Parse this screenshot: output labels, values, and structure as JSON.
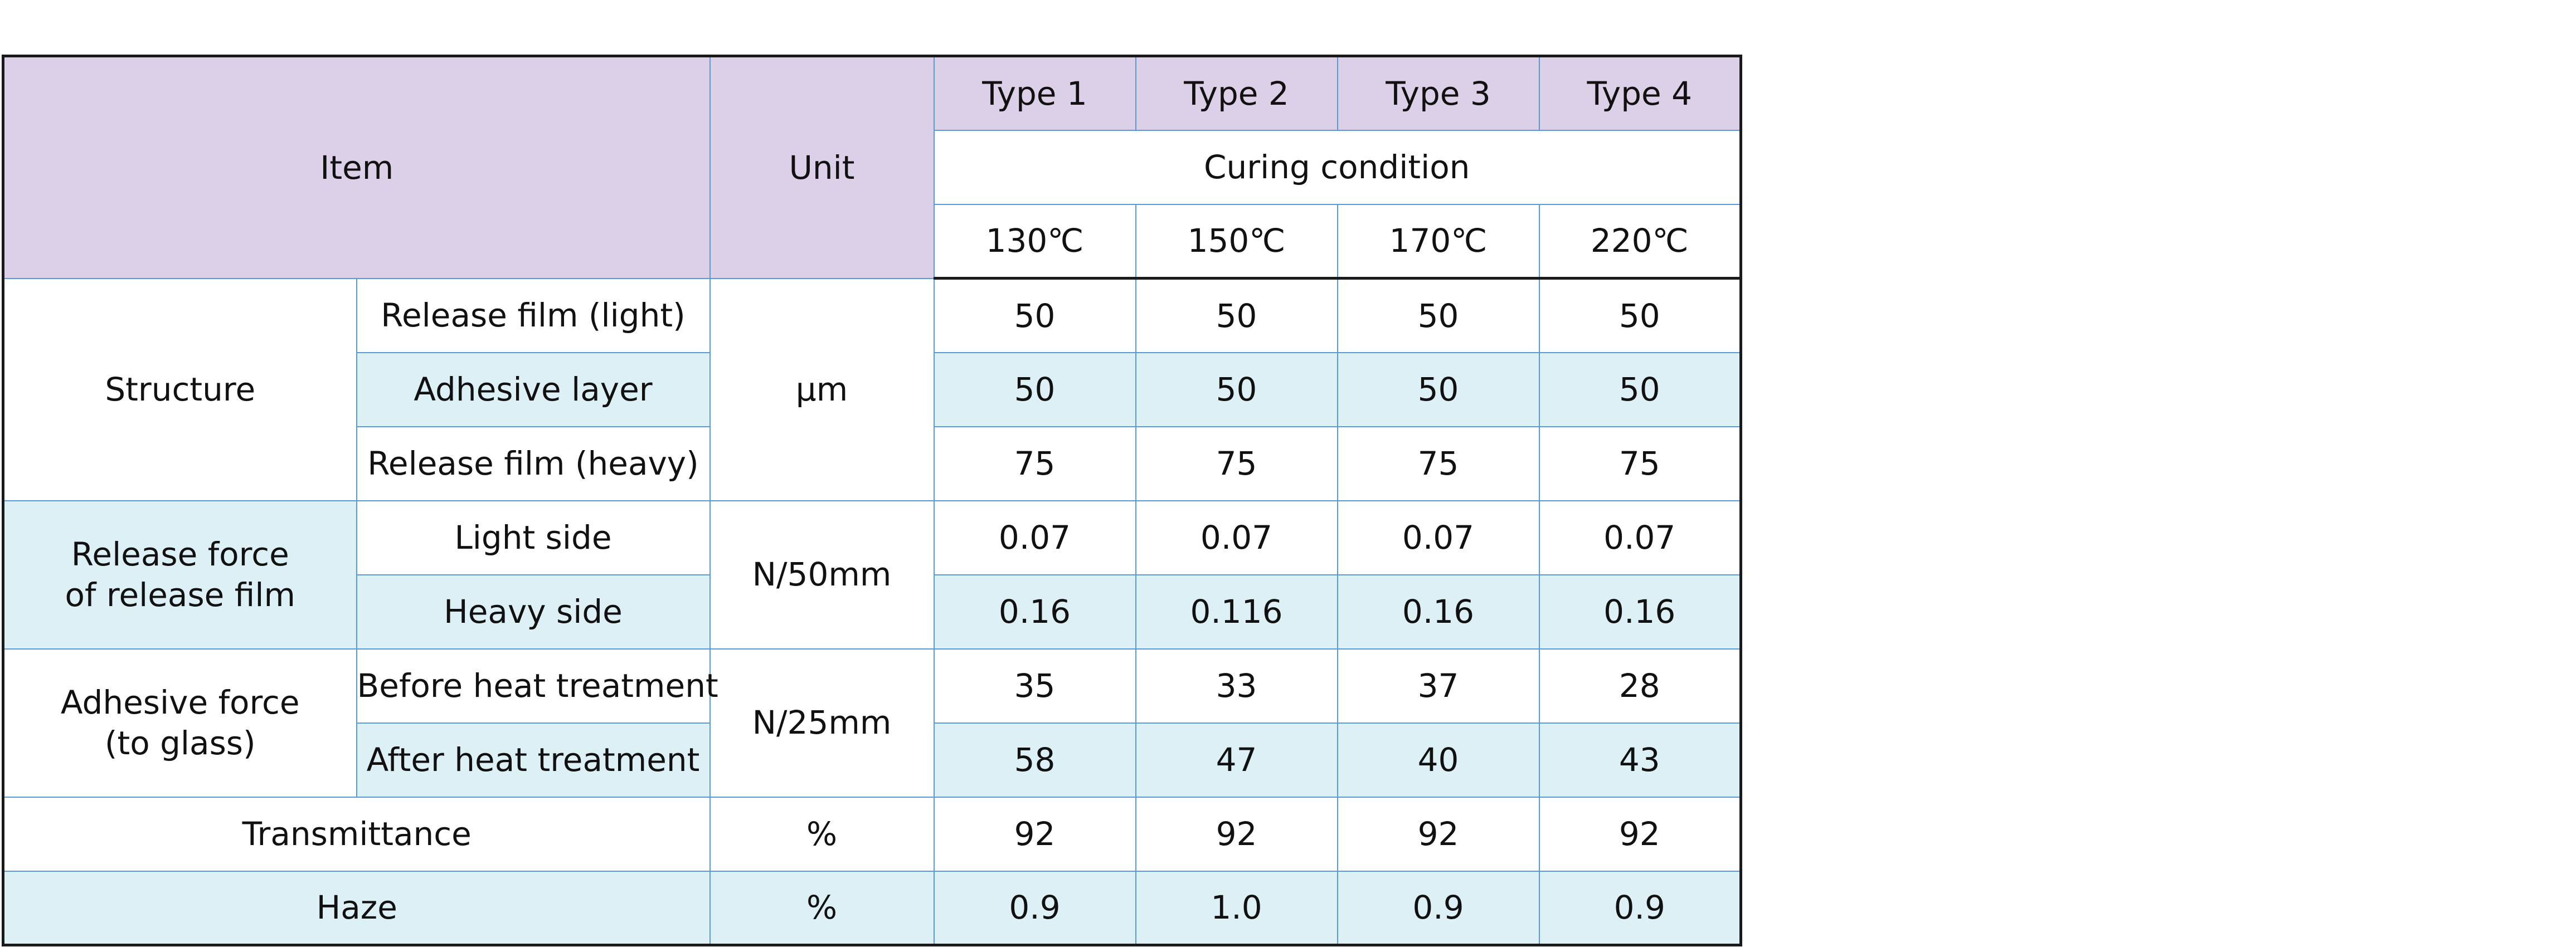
{
  "header": {
    "item": "Item",
    "unit": "Unit",
    "types": [
      "Type 1",
      "Type 2",
      "Type 3",
      "Type 4"
    ],
    "curing_condition": "Curing condition",
    "temperatures": [
      "130℃",
      "150℃",
      "170℃",
      "220℃"
    ]
  },
  "rows": {
    "structure": {
      "label": "Structure",
      "unit": "μm",
      "sub": [
        {
          "label": "Release film (light)",
          "values": [
            "50",
            "50",
            "50",
            "50"
          ]
        },
        {
          "label": "Adhesive layer",
          "values": [
            "50",
            "50",
            "50",
            "50"
          ]
        },
        {
          "label": "Release film (heavy)",
          "values": [
            "75",
            "75",
            "75",
            "75"
          ]
        }
      ]
    },
    "release_force": {
      "label_line1": "Release force",
      "label_line2": "of release film",
      "unit": "N/50mm",
      "sub": [
        {
          "label": "Light side",
          "values": [
            "0.07",
            "0.07",
            "0.07",
            "0.07"
          ]
        },
        {
          "label": "Heavy side",
          "values": [
            "0.16",
            "0.116",
            "0.16",
            "0.16"
          ]
        }
      ]
    },
    "adhesive_force": {
      "label_line1": "Adhesive force",
      "label_line2": "(to glass)",
      "unit": "N/25mm",
      "sub": [
        {
          "label": "Before heat treatment",
          "values": [
            "35",
            "33",
            "37",
            "28"
          ]
        },
        {
          "label": "After heat treatment",
          "values": [
            "58",
            "47",
            "40",
            "43"
          ]
        }
      ]
    },
    "transmittance": {
      "label": "Transmittance",
      "unit": "%",
      "values": [
        "92",
        "92",
        "92",
        "92"
      ]
    },
    "haze": {
      "label": "Haze",
      "unit": "%",
      "values": [
        "0.9",
        "1.0",
        "0.9",
        "0.9"
      ]
    }
  }
}
